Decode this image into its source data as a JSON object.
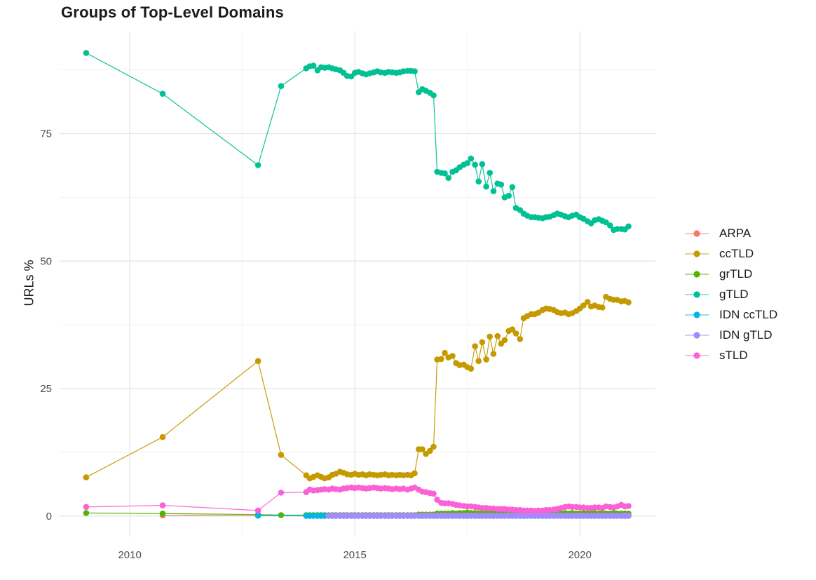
{
  "chart_data": {
    "type": "scatter-line",
    "title": "Groups of Top-Level Domains",
    "ylabel": "URLs %",
    "xlabel": "",
    "grid": true,
    "legend_position": "right",
    "x_range": [
      2008.44,
      2021.68
    ],
    "y_range": [
      -4,
      95
    ],
    "x_ticks": [
      {
        "value": 2010,
        "label": "2010"
      },
      {
        "value": 2015,
        "label": "2015"
      },
      {
        "value": 2020,
        "label": "2020"
      }
    ],
    "x_minor": [
      2012.5,
      2017.5
    ],
    "y_ticks": [
      {
        "value": 0,
        "label": "0"
      },
      {
        "value": 25,
        "label": "25"
      },
      {
        "value": 50,
        "label": "50"
      },
      {
        "value": 75,
        "label": "75"
      }
    ],
    "y_minor": [
      12.5,
      37.5,
      62.5,
      87.5
    ],
    "x_dense": [
      2013.92,
      2014.0,
      2014.08,
      2014.17,
      2014.25,
      2014.33,
      2014.42,
      2014.5,
      2014.58,
      2014.67,
      2014.75,
      2014.83,
      2014.92,
      2015.0,
      2015.08,
      2015.17,
      2015.25,
      2015.33,
      2015.42,
      2015.5,
      2015.58,
      2015.67,
      2015.75,
      2015.83,
      2015.92,
      2016.0,
      2016.08,
      2016.17,
      2016.25,
      2016.33,
      2016.42,
      2016.5,
      2016.58,
      2016.67,
      2016.75,
      2016.83,
      2016.92,
      2017.0,
      2017.08,
      2017.17,
      2017.25,
      2017.33,
      2017.42,
      2017.5,
      2017.58,
      2017.67,
      2017.75,
      2017.83,
      2017.92,
      2018.0,
      2018.08,
      2018.17,
      2018.25,
      2018.33,
      2018.42,
      2018.5,
      2018.58,
      2018.67,
      2018.75,
      2018.83,
      2018.92,
      2019.0,
      2019.08,
      2019.17,
      2019.25,
      2019.33,
      2019.42,
      2019.5,
      2019.58,
      2019.67,
      2019.75,
      2019.83,
      2019.92,
      2020.0,
      2020.08,
      2020.17,
      2020.25,
      2020.33,
      2020.42,
      2020.5,
      2020.58,
      2020.67,
      2020.75,
      2020.83,
      2020.92,
      2021.0,
      2021.08
    ],
    "series": [
      {
        "name": "ARPA",
        "label": "ARPA",
        "color": "#F8766D",
        "pre": [
          [
            2010.73,
            0.15
          ],
          [
            2012.85,
            0.1
          ]
        ],
        "dense_const": 0.05,
        "dense_start": 0
      },
      {
        "name": "ccTLD",
        "label": "ccTLD",
        "color": "#C49A00",
        "pre": [
          [
            2009.03,
            7.6
          ],
          [
            2010.73,
            15.5
          ],
          [
            2012.85,
            30.4
          ],
          [
            2013.36,
            12.0
          ]
        ],
        "dense_y": [
          8.0,
          7.4,
          7.7,
          8.0,
          7.7,
          7.4,
          7.6,
          8.1,
          8.3,
          8.7,
          8.5,
          8.2,
          8.1,
          8.3,
          8.1,
          8.2,
          8.0,
          8.2,
          8.1,
          8.0,
          8.1,
          8.2,
          8.0,
          8.1,
          8.0,
          8.1,
          8.0,
          8.1,
          8.0,
          8.4,
          13.1,
          13.1,
          12.2,
          12.8,
          13.6,
          30.7,
          30.8,
          32.0,
          31.1,
          31.4,
          30.0,
          29.6,
          29.7,
          29.2,
          28.9,
          33.3,
          30.4,
          34.1,
          30.7,
          35.2,
          31.8,
          35.3,
          33.8,
          34.5,
          36.3,
          36.6,
          35.8,
          34.7,
          38.8,
          39.2,
          39.6,
          39.6,
          39.9,
          40.4,
          40.7,
          40.6,
          40.4,
          40.0,
          39.8,
          39.9,
          39.6,
          39.8,
          40.2,
          40.7,
          41.3,
          42.0,
          41.1,
          41.3,
          41.0,
          40.9,
          43.0,
          42.6,
          42.4,
          42.4,
          42.1,
          42.2,
          41.9
        ]
      },
      {
        "name": "grTLD",
        "label": "grTLD",
        "color": "#53B400",
        "pre": [
          [
            2009.03,
            0.6
          ],
          [
            2010.73,
            0.5
          ],
          [
            2012.85,
            0.3
          ],
          [
            2013.36,
            0.2
          ]
        ],
        "dense_y": [
          0.2,
          0.2,
          0.2,
          0.2,
          0.2,
          0.2,
          0.2,
          0.2,
          0.2,
          0.2,
          0.2,
          0.2,
          0.2,
          0.2,
          0.2,
          0.2,
          0.2,
          0.2,
          0.2,
          0.2,
          0.2,
          0.2,
          0.2,
          0.2,
          0.2,
          0.2,
          0.2,
          0.2,
          0.2,
          0.2,
          0.3,
          0.3,
          0.3,
          0.3,
          0.3,
          0.5,
          0.5,
          0.5,
          0.5,
          0.6,
          0.5,
          0.6,
          0.6,
          0.7,
          0.6,
          0.6,
          0.5,
          0.6,
          0.5,
          0.6,
          0.5,
          0.6,
          0.6,
          0.5,
          0.5,
          0.6,
          0.5,
          0.5,
          0.6,
          0.5,
          0.6,
          0.6,
          0.5,
          0.5,
          0.6,
          0.5,
          0.6,
          0.6,
          0.5,
          0.6,
          0.5,
          0.6,
          0.5,
          0.5,
          0.6,
          0.5,
          0.5,
          0.6,
          0.5,
          0.6,
          0.5,
          0.5,
          0.6,
          0.5,
          0.5,
          0.5,
          0.5
        ]
      },
      {
        "name": "gTLD",
        "label": "gTLD",
        "color": "#00C094",
        "pre": [
          [
            2009.03,
            90.8
          ],
          [
            2010.73,
            82.8
          ],
          [
            2012.85,
            68.8
          ],
          [
            2013.36,
            84.3
          ]
        ],
        "dense_y": [
          87.8,
          88.2,
          88.3,
          87.4,
          88.0,
          87.9,
          88.0,
          87.8,
          87.6,
          87.4,
          86.9,
          86.3,
          86.2,
          86.9,
          87.1,
          86.8,
          86.6,
          86.8,
          87.0,
          87.2,
          87.0,
          86.9,
          87.1,
          87.0,
          86.9,
          87.0,
          87.2,
          87.3,
          87.3,
          87.2,
          83.1,
          83.7,
          83.4,
          83.0,
          82.5,
          67.5,
          67.3,
          67.2,
          66.3,
          67.5,
          67.8,
          68.4,
          68.9,
          69.2,
          70.1,
          68.9,
          65.6,
          69.0,
          64.6,
          67.3,
          63.7,
          65.2,
          65.0,
          62.5,
          62.8,
          64.5,
          60.4,
          60.0,
          59.3,
          58.9,
          58.6,
          58.6,
          58.5,
          58.4,
          58.6,
          58.7,
          59.0,
          59.3,
          59.1,
          58.8,
          58.6,
          58.9,
          59.1,
          58.6,
          58.3,
          57.8,
          57.4,
          58.0,
          58.2,
          57.9,
          57.6,
          57.0,
          56.1,
          56.3,
          56.3,
          56.2,
          56.8
        ]
      },
      {
        "name": "IDN-ccTLD",
        "label": "IDN ccTLD",
        "color": "#00B6EB",
        "pre": [
          [
            2012.85,
            0.1
          ]
        ],
        "dense_const": 0.05,
        "dense_start": 0
      },
      {
        "name": "IDN-gTLD",
        "label": "IDN gTLD",
        "color": "#A58AFF",
        "pre": [],
        "dense_const": 0.1,
        "dense_start": 6
      },
      {
        "name": "sTLD",
        "label": "sTLD",
        "color": "#FB61D7",
        "pre": [
          [
            2009.03,
            1.8
          ],
          [
            2010.73,
            2.1
          ],
          [
            2012.85,
            1.1
          ],
          [
            2013.36,
            4.6
          ]
        ],
        "dense_y": [
          4.7,
          5.2,
          5.0,
          5.1,
          5.2,
          5.3,
          5.2,
          5.4,
          5.3,
          5.2,
          5.4,
          5.5,
          5.6,
          5.5,
          5.6,
          5.5,
          5.4,
          5.5,
          5.6,
          5.5,
          5.4,
          5.5,
          5.4,
          5.3,
          5.4,
          5.3,
          5.4,
          5.2,
          5.4,
          5.6,
          5.2,
          4.8,
          4.7,
          4.5,
          4.4,
          3.2,
          2.6,
          2.5,
          2.5,
          2.4,
          2.2,
          2.1,
          2.0,
          1.9,
          1.9,
          1.8,
          1.7,
          1.6,
          1.6,
          1.5,
          1.5,
          1.4,
          1.4,
          1.4,
          1.3,
          1.3,
          1.2,
          1.2,
          1.1,
          1.1,
          1.1,
          1.0,
          1.1,
          1.1,
          1.2,
          1.2,
          1.3,
          1.4,
          1.6,
          1.8,
          1.9,
          1.8,
          1.8,
          1.7,
          1.7,
          1.6,
          1.6,
          1.7,
          1.7,
          1.6,
          1.9,
          1.8,
          1.7,
          1.9,
          2.2,
          1.9,
          2.0
        ]
      }
    ]
  },
  "colors": {
    "background": "#FFFFFF",
    "grid_major": "#E3E3E3",
    "grid_minor": "#F2F2F2",
    "tick_label": "#4D4D4D",
    "text": "#1A1A1A"
  }
}
